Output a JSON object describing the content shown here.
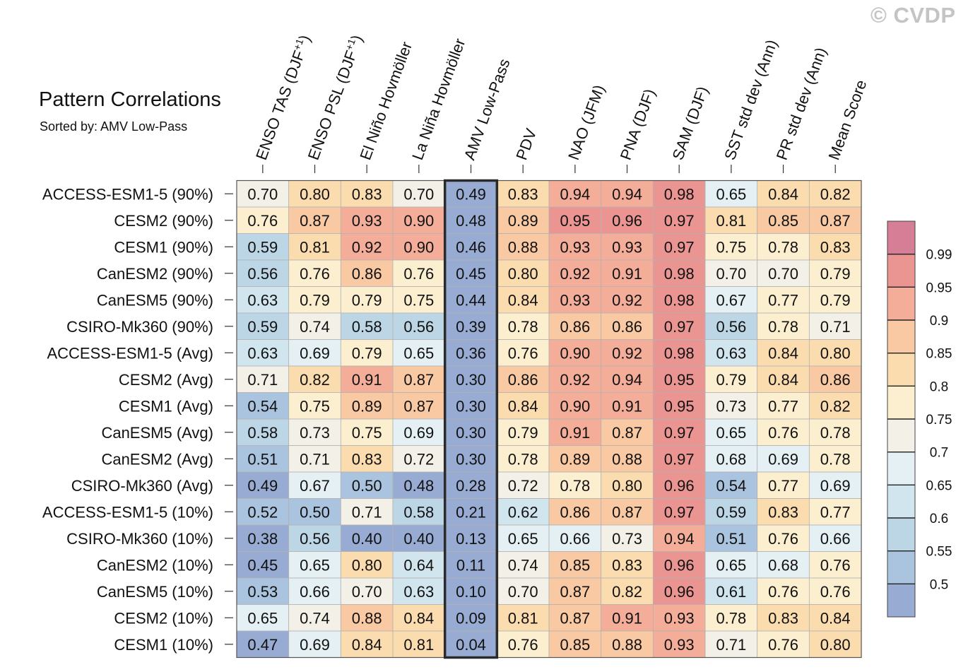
{
  "watermark": "© CVDP",
  "chart_data": {
    "type": "heatmap",
    "title": "Pattern Correlations",
    "subtitle": "Sorted by: AMV Low-Pass",
    "highlight_column": "AMV Low-Pass",
    "columns": [
      {
        "label": "ENSO TAS (DJF",
        "sup": "+1",
        "close": ")"
      },
      {
        "label": "ENSO PSL (DJF",
        "sup": "+1",
        "close": ")"
      },
      {
        "label": "El Niño Hovmöller",
        "sup": "",
        "close": ""
      },
      {
        "label": "La Niña Hovmöller",
        "sup": "",
        "close": ""
      },
      {
        "label": "AMV Low-Pass",
        "sup": "",
        "close": ""
      },
      {
        "label": "PDV",
        "sup": "",
        "close": ""
      },
      {
        "label": "NAO (JFM)",
        "sup": "",
        "close": ""
      },
      {
        "label": "PNA (DJF)",
        "sup": "",
        "close": ""
      },
      {
        "label": "SAM (DJF)",
        "sup": "",
        "close": ""
      },
      {
        "label": "SST std dev (Ann)",
        "sup": "",
        "close": ""
      },
      {
        "label": "PR std dev (Ann)",
        "sup": "",
        "close": ""
      },
      {
        "label": "Mean Score",
        "sup": "",
        "close": ""
      }
    ],
    "rows": [
      "ACCESS-ESM1-5 (90%)",
      "CESM2 (90%)",
      "CESM1 (90%)",
      "CanESM2 (90%)",
      "CanESM5 (90%)",
      "CSIRO-Mk360 (90%)",
      "ACCESS-ESM1-5 (Avg)",
      "CESM2 (Avg)",
      "CESM1 (Avg)",
      "CanESM5 (Avg)",
      "CanESM2 (Avg)",
      "CSIRO-Mk360 (Avg)",
      "ACCESS-ESM1-5 (10%)",
      "CSIRO-Mk360 (10%)",
      "CanESM2 (10%)",
      "CanESM5 (10%)",
      "CESM2 (10%)",
      "CESM1 (10%)"
    ],
    "values": [
      [
        0.7,
        0.8,
        0.83,
        0.7,
        0.49,
        0.83,
        0.94,
        0.94,
        0.98,
        0.65,
        0.84,
        0.82
      ],
      [
        0.76,
        0.87,
        0.93,
        0.9,
        0.48,
        0.89,
        0.95,
        0.96,
        0.97,
        0.81,
        0.85,
        0.87
      ],
      [
        0.59,
        0.81,
        0.92,
        0.9,
        0.46,
        0.88,
        0.93,
        0.93,
        0.97,
        0.75,
        0.78,
        0.83
      ],
      [
        0.56,
        0.76,
        0.86,
        0.76,
        0.45,
        0.8,
        0.92,
        0.91,
        0.98,
        0.7,
        0.7,
        0.79
      ],
      [
        0.63,
        0.79,
        0.79,
        0.75,
        0.44,
        0.84,
        0.93,
        0.92,
        0.98,
        0.67,
        0.77,
        0.79
      ],
      [
        0.59,
        0.74,
        0.58,
        0.56,
        0.39,
        0.78,
        0.86,
        0.86,
        0.97,
        0.56,
        0.78,
        0.71
      ],
      [
        0.63,
        0.69,
        0.79,
        0.65,
        0.36,
        0.76,
        0.9,
        0.92,
        0.98,
        0.63,
        0.84,
        0.8
      ],
      [
        0.71,
        0.82,
        0.91,
        0.87,
        0.3,
        0.86,
        0.92,
        0.94,
        0.95,
        0.79,
        0.84,
        0.86
      ],
      [
        0.54,
        0.75,
        0.89,
        0.87,
        0.3,
        0.84,
        0.9,
        0.91,
        0.95,
        0.73,
        0.77,
        0.82
      ],
      [
        0.58,
        0.73,
        0.75,
        0.69,
        0.3,
        0.79,
        0.91,
        0.87,
        0.97,
        0.65,
        0.76,
        0.78
      ],
      [
        0.51,
        0.71,
        0.83,
        0.72,
        0.3,
        0.78,
        0.89,
        0.88,
        0.97,
        0.68,
        0.69,
        0.78
      ],
      [
        0.49,
        0.67,
        0.5,
        0.48,
        0.28,
        0.72,
        0.78,
        0.8,
        0.96,
        0.54,
        0.77,
        0.69
      ],
      [
        0.52,
        0.5,
        0.71,
        0.58,
        0.21,
        0.62,
        0.86,
        0.87,
        0.97,
        0.59,
        0.83,
        0.77
      ],
      [
        0.38,
        0.56,
        0.4,
        0.4,
        0.13,
        0.65,
        0.66,
        0.73,
        0.94,
        0.51,
        0.76,
        0.66
      ],
      [
        0.45,
        0.65,
        0.8,
        0.64,
        0.11,
        0.74,
        0.85,
        0.83,
        0.96,
        0.65,
        0.68,
        0.76
      ],
      [
        0.53,
        0.66,
        0.7,
        0.63,
        0.1,
        0.7,
        0.87,
        0.82,
        0.96,
        0.61,
        0.76,
        0.76
      ],
      [
        0.65,
        0.74,
        0.88,
        0.84,
        0.09,
        0.81,
        0.87,
        0.91,
        0.93,
        0.78,
        0.83,
        0.84
      ],
      [
        0.47,
        0.69,
        0.84,
        0.81,
        0.04,
        0.76,
        0.85,
        0.88,
        0.93,
        0.71,
        0.76,
        0.8
      ]
    ],
    "colorbar": {
      "levels": [
        0.5,
        0.55,
        0.6,
        0.65,
        0.7,
        0.75,
        0.8,
        0.85,
        0.9,
        0.95,
        0.99
      ],
      "labels": [
        "0.5",
        "0.55",
        "0.6",
        "0.65",
        "0.7",
        "0.75",
        "0.8",
        "0.85",
        "0.9",
        "0.95",
        "0.99"
      ],
      "colors": [
        "#98abd3",
        "#aac3de",
        "#bdd6e6",
        "#d1e5ee",
        "#e4f0f3",
        "#f3f1e7",
        "#fcefcf",
        "#fbdcae",
        "#f8c9a2",
        "#f3ad98",
        "#eb9592",
        "#d67e96"
      ]
    }
  }
}
